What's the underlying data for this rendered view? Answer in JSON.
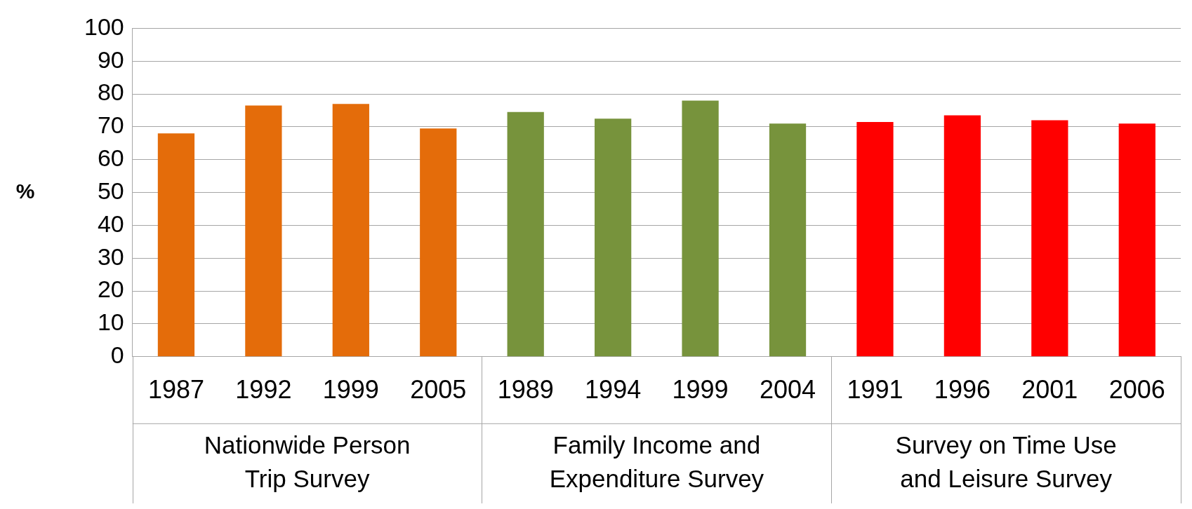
{
  "chart_data": {
    "type": "bar",
    "ylabel": "%",
    "categories": [
      "1987",
      "1992",
      "1999",
      "2005",
      "1989",
      "1994",
      "1999",
      "2004",
      "1991",
      "1996",
      "2001",
      "2006"
    ],
    "values": [
      68,
      76.5,
      77,
      69.5,
      74.5,
      72.5,
      78,
      71,
      71.5,
      73.5,
      72,
      71
    ],
    "colors": [
      "#e46c0a",
      "#e46c0a",
      "#e46c0a",
      "#e46c0a",
      "#77933c",
      "#77933c",
      "#77933c",
      "#77933c",
      "#ff0000",
      "#ff0000",
      "#ff0000",
      "#ff0000"
    ],
    "annotations": [
      "Nationwide Person Trip Survey",
      "Family Income and Expenditure Survey",
      "Survey on Time Use and Leisure Survey"
    ],
    "ylim": [
      0,
      100
    ],
    "yticks": [
      0,
      10,
      20,
      30,
      40,
      50,
      60,
      70,
      80,
      90,
      100
    ],
    "grid": "y"
  }
}
